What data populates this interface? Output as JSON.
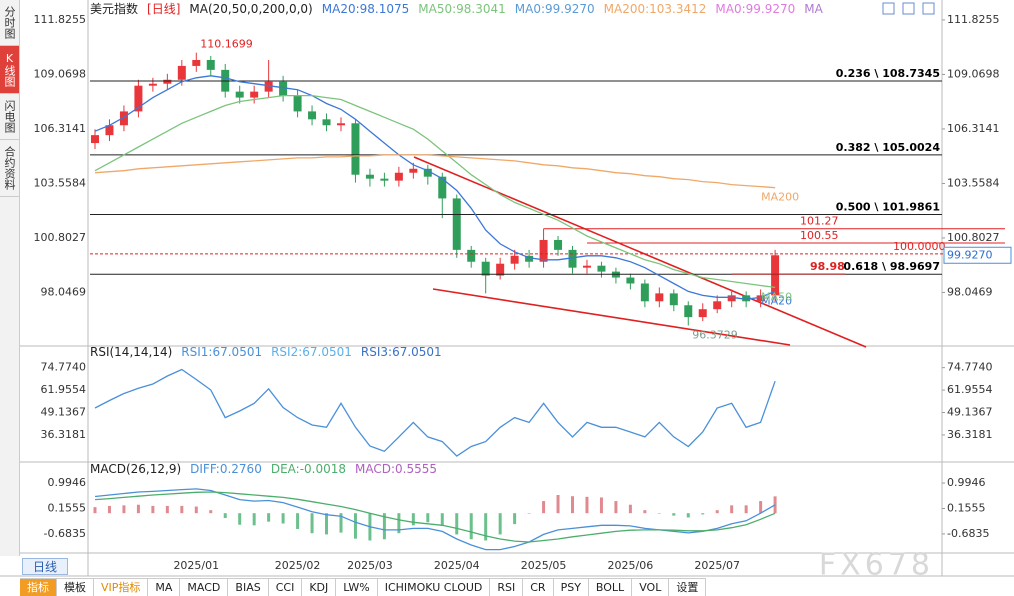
{
  "sidebar_tabs": [
    "分时图",
    "K线图",
    "闪电图",
    "合约资料"
  ],
  "period_button": "日线",
  "toolbar": [
    "指标",
    "模板",
    "VIP指标",
    "MA",
    "MACD",
    "BIAS",
    "CCI",
    "KDJ",
    "LW%",
    "ICHIMOKU CLOUD",
    "RSI",
    "CR",
    "PSY",
    "BOLL",
    "VOL",
    "设置"
  ],
  "watermark": "FX678",
  "chart_data": [
    {
      "type": "candlestick",
      "title": "美元指数",
      "period": "[日线]",
      "indicator": "MA(20,50,0,200,0,0)",
      "categories": [
        null,
        null,
        null,
        null,
        null,
        null,
        null,
        "2025/01",
        null,
        null,
        null,
        null,
        null,
        null,
        "2025/02",
        null,
        null,
        null,
        null,
        "2025/03",
        null,
        null,
        null,
        null,
        null,
        "2025/04",
        null,
        null,
        null,
        null,
        null,
        "2025/05",
        null,
        null,
        null,
        null,
        null,
        "2025/06",
        null,
        null,
        null,
        null,
        null,
        "2025/07",
        null,
        null,
        null,
        null
      ],
      "open": [
        105.6,
        106.0,
        106.5,
        107.2,
        108.5,
        108.6,
        108.8,
        109.5,
        109.8,
        109.3,
        108.2,
        107.9,
        108.2,
        108.7,
        108.0,
        107.2,
        106.8,
        106.5,
        106.6,
        104.0,
        103.8,
        103.7,
        104.1,
        104.3,
        103.9,
        102.8,
        100.2,
        99.6,
        98.9,
        99.5,
        99.9,
        99.6,
        100.7,
        100.2,
        99.3,
        99.4,
        99.1,
        98.8,
        98.5,
        97.6,
        98.0,
        97.4,
        96.8,
        97.2,
        97.6,
        97.9,
        97.6,
        97.9
      ],
      "high": [
        106.3,
        106.8,
        107.5,
        108.8,
        108.9,
        109.1,
        109.8,
        110.1699,
        110.0,
        109.6,
        108.5,
        108.5,
        109.8,
        109.0,
        108.3,
        107.5,
        107.1,
        106.9,
        106.8,
        104.3,
        104.1,
        104.4,
        104.6,
        104.5,
        104.1,
        103.0,
        100.4,
        99.8,
        99.8,
        100.2,
        100.2,
        101.27,
        100.9,
        100.4,
        99.7,
        99.6,
        99.3,
        99.0,
        98.7,
        98.3,
        98.2,
        97.6,
        97.5,
        97.9,
        98.2,
        98.1,
        98.2,
        100.2
      ],
      "low": [
        105.3,
        105.7,
        106.2,
        106.9,
        108.2,
        108.3,
        108.5,
        109.2,
        109.0,
        107.9,
        107.6,
        107.6,
        107.9,
        107.7,
        106.9,
        106.5,
        106.2,
        106.2,
        103.6,
        103.4,
        103.4,
        103.4,
        103.8,
        103.5,
        101.8,
        99.8,
        99.3,
        98.0,
        98.7,
        99.2,
        99.3,
        99.3,
        99.9,
        99.0,
        99.0,
        98.8,
        98.5,
        98.2,
        97.3,
        97.3,
        97.1,
        96.3729,
        96.6,
        97.0,
        97.3,
        97.3,
        97.3,
        97.6
      ],
      "close": [
        106.0,
        106.5,
        107.2,
        108.5,
        108.6,
        108.8,
        109.5,
        109.8,
        109.3,
        108.2,
        107.9,
        108.2,
        108.7,
        108.0,
        107.2,
        106.8,
        106.5,
        106.6,
        104.0,
        103.8,
        103.7,
        104.1,
        104.3,
        103.9,
        102.8,
        100.2,
        99.6,
        98.9,
        99.5,
        99.9,
        99.6,
        100.7,
        100.2,
        99.3,
        99.4,
        99.1,
        98.8,
        98.5,
        97.6,
        98.0,
        97.4,
        96.8,
        97.2,
        97.6,
        97.9,
        97.6,
        97.9,
        99.927
      ],
      "up_color": "#e8363a",
      "down_color": "#2f9e5a",
      "series": [
        {
          "name": "MA20:98.1075",
          "label": "MA20",
          "color": "#3c78d8",
          "values": [
            106.2,
            106.5,
            106.9,
            107.4,
            107.9,
            108.3,
            108.7,
            108.9,
            109.0,
            108.9,
            108.7,
            108.6,
            108.5,
            108.4,
            108.3,
            108.0,
            107.6,
            107.3,
            106.8,
            106.2,
            105.6,
            105.0,
            104.5,
            104.2,
            103.8,
            103.2,
            102.3,
            101.2,
            100.5,
            100.1,
            99.8,
            99.7,
            99.7,
            99.8,
            99.9,
            99.9,
            99.8,
            99.6,
            99.3,
            98.9,
            98.5,
            98.1,
            97.9,
            97.8,
            97.8,
            97.7,
            97.8,
            98.1075
          ]
        },
        {
          "name": "MA50:98.3041",
          "label": "MA50",
          "color": "#7cc47c",
          "values": [
            104.2,
            104.6,
            105.0,
            105.4,
            105.8,
            106.2,
            106.6,
            106.9,
            107.2,
            107.5,
            107.7,
            107.8,
            107.9,
            108.0,
            108.0,
            108.0,
            107.9,
            107.8,
            107.5,
            107.2,
            106.9,
            106.6,
            106.3,
            105.8,
            105.2,
            104.6,
            104.0,
            103.5,
            103.0,
            102.6,
            102.3,
            102.0,
            101.7,
            101.3,
            100.9,
            100.6,
            100.3,
            100.0,
            99.7,
            99.5,
            99.2,
            99.0,
            98.8,
            98.7,
            98.6,
            98.5,
            98.4,
            98.3041
          ]
        },
        {
          "name": "MA0:99.9270",
          "color": "#5b9bd5"
        },
        {
          "name": "MA200:103.3412",
          "label": "MA200",
          "color": "#f0a868",
          "values": [
            104.1,
            104.15,
            104.2,
            104.3,
            104.35,
            104.4,
            104.45,
            104.5,
            104.55,
            104.6,
            104.65,
            104.7,
            104.75,
            104.8,
            104.85,
            104.85,
            104.9,
            104.9,
            104.95,
            104.95,
            105.0,
            105.0,
            105.0,
            105.0,
            104.95,
            104.9,
            104.85,
            104.8,
            104.75,
            104.7,
            104.6,
            104.5,
            104.45,
            104.35,
            104.3,
            104.2,
            104.1,
            104.05,
            103.95,
            103.9,
            103.8,
            103.75,
            103.65,
            103.6,
            103.5,
            103.45,
            103.4,
            103.3412
          ]
        },
        {
          "name": "MA0:99.9270",
          "color": "#e07ae0"
        },
        {
          "name": "MA",
          "color": "#b07ad0"
        }
      ],
      "ylim": [
        95.39,
        112.58
      ],
      "yticks": [
        98.0469,
        100.8027,
        103.5584,
        106.3141,
        109.0698,
        111.8255
      ],
      "fib_levels": [
        {
          "value": 108.7345,
          "label": "0.236 \\ 108.7345"
        },
        {
          "value": 105.0024,
          "label": "0.382 \\ 105.0024"
        },
        {
          "value": 101.9861,
          "label": "0.500 \\ 101.9861"
        },
        {
          "value": 98.9697,
          "label": "0.618 \\ 98.9697"
        }
      ],
      "price_levels": [
        101.27,
        100.55,
        {
          "value": 100,
          "label": "100.0000"
        },
        98.98
      ],
      "last_price": {
        "value": 99.927,
        "label": "99.9270"
      }
    },
    {
      "type": "line",
      "title": "RSI(14,14,14)",
      "series": [
        {
          "name": "RSI1:67.0501",
          "color": "#4a90d9",
          "values": [
            51.7,
            56.0,
            60.0,
            63.0,
            65.4,
            70.0,
            73.7,
            68.0,
            62.0,
            46.2,
            50.0,
            54.4,
            62.7,
            52.0,
            46.2,
            42.0,
            40.7,
            54.4,
            40.7,
            30.0,
            27.0,
            35.2,
            43.5,
            35.2,
            32.5,
            24.2,
            29.7,
            32.5,
            40.7,
            46.2,
            43.5,
            54.4,
            43.5,
            35.2,
            43.5,
            40.7,
            40.7,
            38.0,
            35.2,
            43.5,
            35.2,
            29.7,
            38.0,
            51.7,
            54.4,
            40.7,
            43.5,
            67.0501
          ]
        },
        {
          "name": "RSI2:67.0501",
          "color": "#5ab0e8"
        },
        {
          "name": "RSI3:67.0501",
          "color": "#3a70c8"
        }
      ],
      "ylim": [
        22,
        86
      ],
      "yticks": [
        36.3181,
        49.1367,
        61.9554,
        {
          "value": 74.774,
          "label": "74.7740"
        }
      ]
    },
    {
      "type": "macd",
      "title": "MACD(26,12,9)",
      "series": [
        {
          "name": "DIFF:0.2760",
          "color": "#4a90d9",
          "values": [
            0.55,
            0.6,
            0.65,
            0.7,
            0.72,
            0.75,
            0.78,
            0.8,
            0.75,
            0.6,
            0.45,
            0.4,
            0.42,
            0.35,
            0.2,
            0.05,
            -0.05,
            -0.1,
            -0.3,
            -0.45,
            -0.55,
            -0.55,
            -0.5,
            -0.5,
            -0.6,
            -0.85,
            -1.05,
            -1.2,
            -1.2,
            -1.1,
            -0.95,
            -0.7,
            -0.55,
            -0.5,
            -0.45,
            -0.4,
            -0.4,
            -0.42,
            -0.5,
            -0.55,
            -0.6,
            -0.65,
            -0.6,
            -0.5,
            -0.35,
            -0.25,
            0.0,
            0.276
          ]
        },
        {
          "name": "DEA:-0.0018",
          "color": "#4cae6c",
          "values": [
            0.45,
            0.48,
            0.52,
            0.56,
            0.6,
            0.63,
            0.66,
            0.69,
            0.7,
            0.68,
            0.64,
            0.6,
            0.56,
            0.52,
            0.46,
            0.38,
            0.3,
            0.22,
            0.12,
            0.0,
            -0.12,
            -0.22,
            -0.3,
            -0.35,
            -0.4,
            -0.5,
            -0.62,
            -0.75,
            -0.85,
            -0.92,
            -0.95,
            -0.9,
            -0.85,
            -0.78,
            -0.72,
            -0.66,
            -0.6,
            -0.56,
            -0.55,
            -0.55,
            -0.56,
            -0.58,
            -0.58,
            -0.55,
            -0.48,
            -0.38,
            -0.2,
            -0.0018
          ]
        }
      ],
      "histogram": {
        "name": "MACD:0.5555",
        "color": "#b060c0",
        "up_color": "#e08a90",
        "down_color": "#6cc08c",
        "values": [
          0.2,
          0.24,
          0.26,
          0.28,
          0.24,
          0.24,
          0.24,
          0.22,
          0.1,
          -0.16,
          -0.38,
          -0.4,
          -0.28,
          -0.34,
          -0.52,
          -0.66,
          -0.7,
          -0.64,
          -0.84,
          -0.9,
          -0.86,
          -0.66,
          -0.4,
          -0.3,
          -0.4,
          -0.7,
          -0.86,
          -0.9,
          -0.7,
          -0.36,
          0.0,
          0.4,
          0.6,
          0.56,
          0.54,
          0.52,
          0.4,
          0.28,
          0.1,
          0.0,
          -0.08,
          -0.14,
          -0.04,
          0.1,
          0.26,
          0.26,
          0.4,
          0.5555
        ]
      },
      "ylim": [
        -1.28,
        1.59
      ],
      "yticks": [
        -0.6835,
        0.1555,
        0.9946
      ]
    }
  ]
}
